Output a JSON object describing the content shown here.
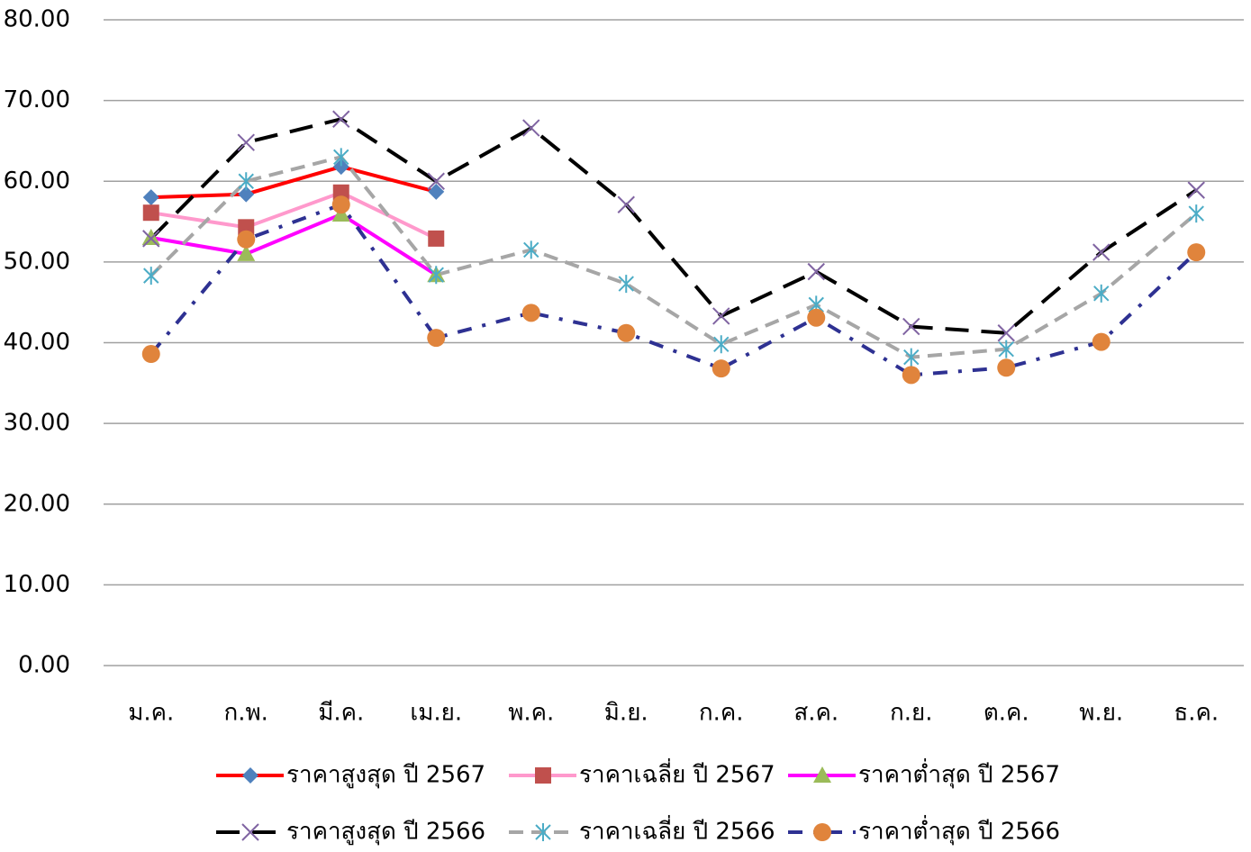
{
  "chart_data": {
    "type": "line",
    "categories": [
      "ม.ค.",
      "ก.พ.",
      "มี.ค.",
      "เม.ย.",
      "พ.ค.",
      "มิ.ย.",
      "ก.ค.",
      "ส.ค.",
      "ก.ย.",
      "ต.ค.",
      "พ.ย.",
      "ธ.ค."
    ],
    "ylim": [
      0,
      80
    ],
    "yticks": [
      {
        "value": 0,
        "label": "0.00"
      },
      {
        "value": 10,
        "label": "10.00"
      },
      {
        "value": 20,
        "label": "20.00"
      },
      {
        "value": 30,
        "label": "30.00"
      },
      {
        "value": 40,
        "label": "40.00"
      },
      {
        "value": 50,
        "label": "50.00"
      },
      {
        "value": 60,
        "label": "60.00"
      },
      {
        "value": 70,
        "label": "70.00"
      },
      {
        "value": 80,
        "label": "80.00"
      }
    ],
    "grid": true,
    "legend": "bottom",
    "series": [
      {
        "name": "ราคาสูงสุด ปี 2567",
        "color": "#ff0000",
        "marker": "diamond",
        "marker_color": "#4f81bd",
        "dash": "solid",
        "values": [
          58.0,
          58.4,
          61.8,
          58.7,
          null,
          null,
          null,
          null,
          null,
          null,
          null,
          null
        ]
      },
      {
        "name": "ราคาเฉลี่ย ปี 2567",
        "color": "#ff99cc",
        "marker": "square",
        "marker_color": "#c0504d",
        "dash": "solid",
        "values": [
          56.1,
          54.3,
          58.6,
          52.9,
          null,
          null,
          null,
          null,
          null,
          null,
          null,
          null
        ]
      },
      {
        "name": "ราคาต่ำสุด ปี 2567",
        "color": "#ff00ff",
        "marker": "triangle",
        "marker_color": "#9bbb59",
        "dash": "solid",
        "values": [
          53.0,
          51.0,
          55.9,
          48.4,
          null,
          null,
          null,
          null,
          null,
          null,
          null,
          null
        ]
      },
      {
        "name": "ราคาสูงสุด ปี 2566",
        "color": "#000000",
        "marker": "x",
        "marker_color": "#8064a2",
        "dash": "longdash",
        "values": [
          52.9,
          64.8,
          67.7,
          60.0,
          66.6,
          57.1,
          43.3,
          48.8,
          42.0,
          41.2,
          51.2,
          58.9
        ]
      },
      {
        "name": "ราคาเฉลี่ย ปี 2566",
        "color": "#a6a6a6",
        "marker": "star",
        "marker_color": "#4bacc6",
        "dash": "dash",
        "values": [
          48.3,
          60.0,
          63.0,
          48.4,
          51.5,
          47.3,
          39.8,
          44.7,
          38.2,
          39.2,
          46.1,
          56.0
        ]
      },
      {
        "name": "ราคาต่ำสุด ปี 2566",
        "color": "#2e3192",
        "marker": "circle",
        "marker_color": "#e0843c",
        "dash": "dashdot",
        "values": [
          38.6,
          52.8,
          57.1,
          40.6,
          43.7,
          41.2,
          36.8,
          43.1,
          36.0,
          36.9,
          40.1,
          51.2
        ]
      }
    ]
  }
}
